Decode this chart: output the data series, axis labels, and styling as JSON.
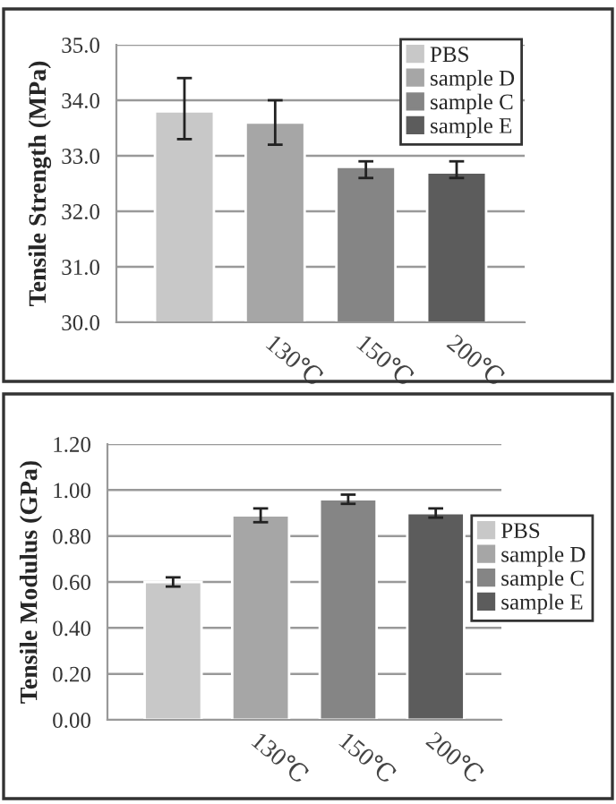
{
  "chart_data": [
    {
      "type": "bar",
      "ylabel": "Tensile Strength (MPa)",
      "categories": [
        null,
        "130℃",
        "150℃",
        "200℃"
      ],
      "series": [
        {
          "name": "PBS",
          "color": "#c8c8c8",
          "values": [
            33.8,
            null,
            null,
            null
          ],
          "errors": [
            [
              33.3,
              34.4
            ],
            null,
            null,
            null
          ]
        },
        {
          "name": "sample D",
          "color": "#a6a6a6",
          "values": [
            null,
            33.6,
            null,
            null
          ],
          "errors": [
            null,
            [
              33.2,
              34.0
            ],
            null,
            null
          ]
        },
        {
          "name": "sample C",
          "color": "#858585",
          "values": [
            null,
            null,
            32.8,
            null
          ],
          "errors": [
            null,
            null,
            [
              32.6,
              32.9
            ],
            null
          ]
        },
        {
          "name": "sample E",
          "color": "#5c5c5c",
          "values": [
            null,
            null,
            null,
            32.7
          ],
          "errors": [
            null,
            null,
            null,
            [
              32.6,
              32.9
            ]
          ]
        }
      ],
      "ylim": [
        30.0,
        35.0
      ],
      "yticks": [
        {
          "value": 30,
          "label": "30.0"
        },
        {
          "value": 31,
          "label": "31.0"
        },
        {
          "value": 32,
          "label": "32.0"
        },
        {
          "value": 33,
          "label": "33.0"
        },
        {
          "value": 34,
          "label": "34.0"
        },
        {
          "value": 35,
          "label": "35.0"
        }
      ],
      "grid": "y",
      "legend": "top right"
    },
    {
      "type": "bar",
      "ylabel": "Tensile Modulus (GPa)",
      "categories": [
        null,
        "130℃",
        "150℃",
        "200℃"
      ],
      "series": [
        {
          "name": "PBS",
          "color": "#c8c8c8",
          "values": [
            0.6,
            null,
            null,
            null
          ],
          "errors": [
            0.02,
            null,
            null,
            null
          ]
        },
        {
          "name": "sample D",
          "color": "#a6a6a6",
          "values": [
            null,
            0.89,
            null,
            null
          ],
          "errors": [
            null,
            0.03,
            null,
            null
          ]
        },
        {
          "name": "sample C",
          "color": "#858585",
          "values": [
            null,
            null,
            0.96,
            null
          ],
          "errors": [
            null,
            null,
            0.02,
            null
          ]
        },
        {
          "name": "sample E",
          "color": "#5c5c5c",
          "values": [
            null,
            null,
            null,
            0.9
          ],
          "errors": [
            null,
            null,
            null,
            0.02
          ]
        }
      ],
      "ylim": [
        0.0,
        1.2
      ],
      "yticks": [
        {
          "value": 0,
          "label": "0.00"
        },
        {
          "value": 0.2,
          "label": "0.20"
        },
        {
          "value": 0.4,
          "label": "0.40"
        },
        {
          "value": 0.6,
          "label": "0.60"
        },
        {
          "value": 0.8,
          "label": "0.80"
        },
        {
          "value": 1.0,
          "label": "1.00"
        },
        {
          "value": 1.2,
          "label": "1.20"
        }
      ],
      "grid": "y",
      "legend": "right"
    }
  ]
}
